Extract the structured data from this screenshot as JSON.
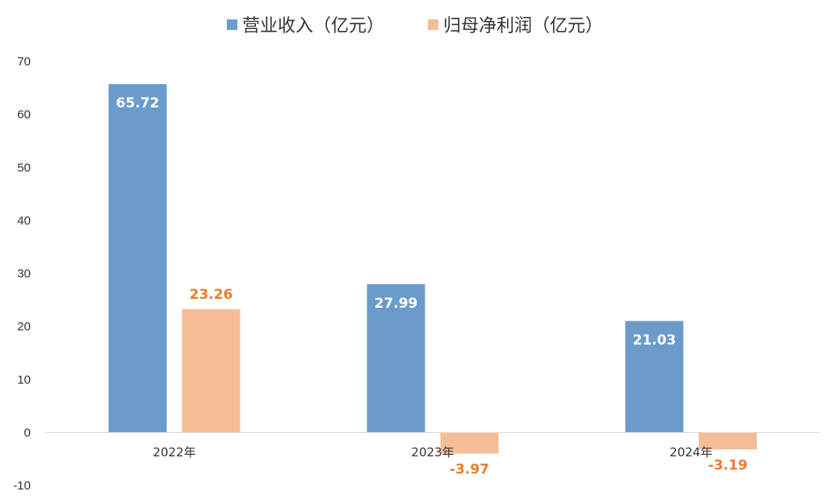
{
  "chart_data": {
    "type": "bar",
    "categories": [
      "2022年",
      "2023年",
      "2024年"
    ],
    "series": [
      {
        "name": "营业收入（亿元）",
        "values": [
          65.72,
          27.99,
          21.03
        ],
        "color": "#6a9bcb",
        "label_color": "#ffffff",
        "labels": [
          "65.72",
          "27.99",
          "21.03"
        ]
      },
      {
        "name": "归母净利润（亿元）",
        "values": [
          23.26,
          -3.97,
          -3.19
        ],
        "color": "#f4bd94",
        "label_color": "#ec7b2c",
        "labels": [
          "23.26",
          "-3.97",
          "-3.19"
        ]
      }
    ],
    "ylim": [
      -10,
      70
    ],
    "yticks": [
      "-10",
      "0",
      "10",
      "20",
      "30",
      "40",
      "50",
      "60",
      "70"
    ],
    "grid": false,
    "legend_position": "top-center",
    "axis_color": "#d9d9d9"
  }
}
